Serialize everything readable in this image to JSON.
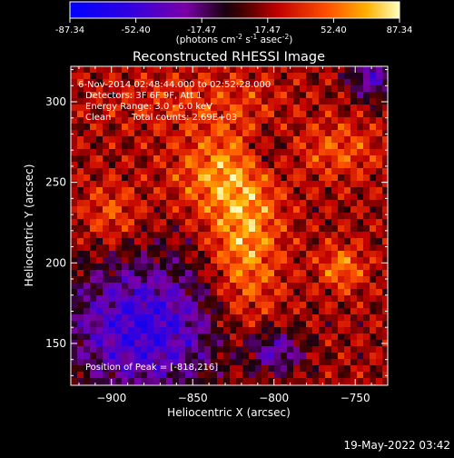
{
  "colorbar": {
    "ticks": [
      "-87.34",
      "-52.40",
      "-17.47",
      "17.47",
      "52.40",
      "87.34"
    ],
    "units_main": "(photons cm",
    "units_exp1": "-2",
    "units_mid": " s",
    "units_exp2": "-1",
    "units_end": " asec",
    "units_exp3": "-2",
    "units_close": ")"
  },
  "image_info": {
    "time_range": "6-Nov-2014 02:48:44.000 to 02:52:28.000",
    "detectors": "Detectors: 3F 6F 9F, Att 1",
    "energy": "Energy Range: 3.0 - 6.0 keV",
    "clean": "Clean",
    "total_counts": "Total counts: 2.69E+03",
    "peak": "Position of Peak = [-818,216]"
  },
  "footer": {
    "date": "19-May-2022 03:42"
  },
  "chart_data": {
    "type": "heatmap",
    "title": "Reconstructed RHESSI Image",
    "xlabel": "Heliocentric X (arcsec)",
    "ylabel": "Heliocentric Y (arcsec)",
    "xlim": [
      -925,
      -730
    ],
    "ylim": [
      124,
      322
    ],
    "xticks": [
      -900,
      -850,
      -800,
      -750
    ],
    "xtick_labels": [
      "−900",
      "−850",
      "−800",
      "−750"
    ],
    "yticks": [
      150,
      200,
      250,
      300
    ],
    "ytick_labels": [
      "150",
      "200",
      "250",
      "300"
    ],
    "value_range": [
      -87.34,
      87.34
    ],
    "peak_position": [
      -818,
      216
    ],
    "colormap": "rhessi-bluered",
    "grid": false
  }
}
